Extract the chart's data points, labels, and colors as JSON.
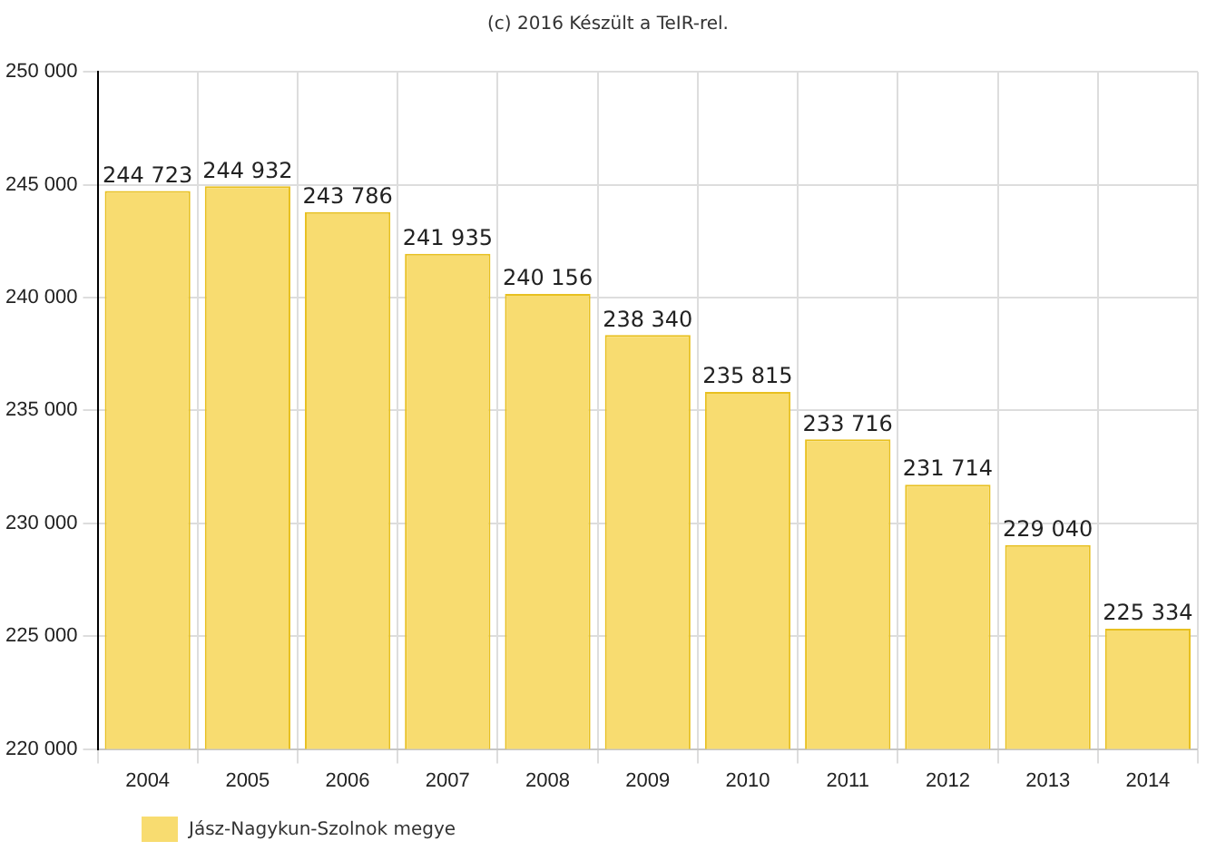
{
  "chart_data": {
    "type": "bar",
    "title": "(c) 2016 Készült a TeIR-rel.",
    "categories": [
      "2004",
      "2005",
      "2006",
      "2007",
      "2008",
      "2009",
      "2010",
      "2011",
      "2012",
      "2013",
      "2014"
    ],
    "series": [
      {
        "name": "Jász-Nagykun-Szolnok megye",
        "color": "#f8dc70",
        "values": [
          244723,
          244932,
          243786,
          241935,
          240156,
          238340,
          235815,
          233716,
          231714,
          229040,
          225334
        ],
        "value_labels": [
          "244 723",
          "244 932",
          "243 786",
          "241 935",
          "240 156",
          "238 340",
          "235 815",
          "233 716",
          "231 714",
          "229 040",
          "225 334"
        ]
      }
    ],
    "ylim": [
      220000,
      250000
    ],
    "yticks": [
      {
        "value": 220000,
        "label": "220 000"
      },
      {
        "value": 225000,
        "label": "225 000"
      },
      {
        "value": 230000,
        "label": "230 000"
      },
      {
        "value": 235000,
        "label": "235 000"
      },
      {
        "value": 240000,
        "label": "240 000"
      },
      {
        "value": 245000,
        "label": "245 000"
      },
      {
        "value": 250000,
        "label": "250 000"
      }
    ],
    "grid": true,
    "legend": "bottom left"
  }
}
